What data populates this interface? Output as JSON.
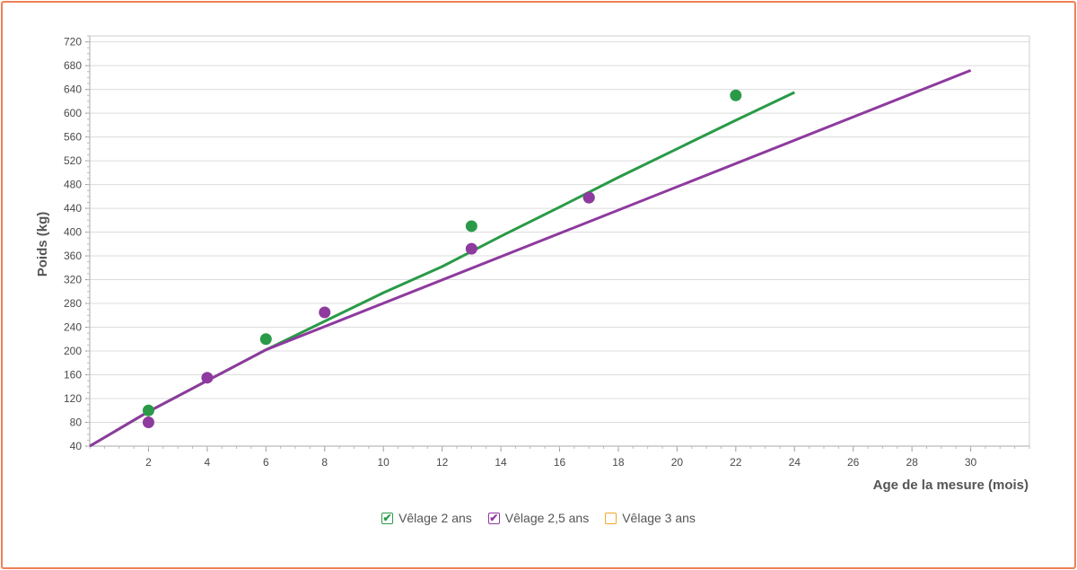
{
  "chart_data": {
    "type": "line",
    "xlabel": "Age de la mesure (mois)",
    "ylabel": "Poids (kg)",
    "xlim": [
      0,
      32
    ],
    "ylim": [
      40,
      730
    ],
    "x_ticks": [
      2,
      4,
      6,
      8,
      10,
      12,
      14,
      16,
      18,
      20,
      22,
      24,
      26,
      28,
      30
    ],
    "y_ticks": [
      40,
      80,
      120,
      160,
      200,
      240,
      280,
      320,
      360,
      400,
      440,
      480,
      520,
      560,
      600,
      640,
      680,
      720
    ],
    "grid": true,
    "legend_position": "bottom",
    "series": [
      {
        "name": "Vêlage 2 ans",
        "color": "#2a9a48",
        "checked": true,
        "line": {
          "x": [
            0,
            2,
            4,
            6,
            8,
            10,
            12,
            14,
            16,
            18,
            20,
            22,
            24
          ],
          "y": [
            40,
            98,
            150,
            202,
            250,
            298,
            342,
            393,
            442,
            492,
            540,
            588,
            635
          ]
        },
        "points": {
          "x": [
            2,
            6,
            13,
            17,
            22
          ],
          "y": [
            100,
            220,
            410,
            458,
            630
          ]
        }
      },
      {
        "name": "Vêlage 2,5 ans",
        "color": "#8e3a9e",
        "checked": true,
        "line": {
          "x": [
            0,
            2,
            4,
            6,
            30
          ],
          "y": [
            40,
            98,
            150,
            202,
            672
          ]
        },
        "points": {
          "x": [
            2,
            4,
            8,
            13,
            17
          ],
          "y": [
            80,
            155,
            265,
            372,
            458
          ]
        }
      },
      {
        "name": "Vêlage 3 ans",
        "color": "#f5a623",
        "checked": false,
        "line": {
          "x": [],
          "y": []
        },
        "points": {
          "x": [],
          "y": []
        }
      }
    ]
  }
}
